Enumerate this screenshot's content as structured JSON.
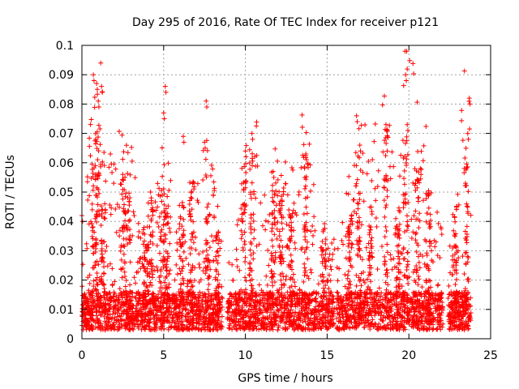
{
  "chart_data": {
    "type": "scatter",
    "title": "Day 295 of 2016, Rate Of TEC Index for receiver p121",
    "xlabel": "GPS time / hours",
    "ylabel": "ROTI / TECUs",
    "xlim": [
      0,
      25
    ],
    "ylim": [
      0,
      0.1
    ],
    "x_ticks": [
      0,
      5,
      10,
      15,
      20,
      25
    ],
    "y_ticks": [
      0,
      0.01,
      0.02,
      0.03,
      0.04,
      0.05,
      0.06,
      0.07,
      0.08,
      0.09,
      0.1
    ],
    "x_tick_labels": [
      "0",
      "5",
      "10",
      "15",
      "20",
      "25"
    ],
    "y_tick_labels": [
      "0",
      "0.01",
      "0.02",
      "0.03",
      "0.04",
      "0.05",
      "0.06",
      "0.07",
      "0.08",
      "0.09",
      "0.1"
    ],
    "grid": true,
    "marker": "+",
    "marker_color": "#ff0000",
    "data_gaps": [
      [
        8.6,
        8.9
      ],
      [
        22.1,
        22.4
      ],
      [
        23.8,
        25
      ]
    ],
    "peaks": [
      {
        "x": 0.0,
        "y": 0.042
      },
      {
        "x": 0.7,
        "y": 0.09
      },
      {
        "x": 0.9,
        "y": 0.087
      },
      {
        "x": 1.2,
        "y": 0.086
      },
      {
        "x": 1.0,
        "y": 0.081
      },
      {
        "x": 1.4,
        "y": 0.046
      },
      {
        "x": 2.5,
        "y": 0.056
      },
      {
        "x": 4.2,
        "y": 0.05
      },
      {
        "x": 5.1,
        "y": 0.086
      },
      {
        "x": 5.0,
        "y": 0.077
      },
      {
        "x": 6.2,
        "y": 0.069
      },
      {
        "x": 7.6,
        "y": 0.081
      },
      {
        "x": 7.5,
        "y": 0.067
      },
      {
        "x": 10.0,
        "y": 0.064
      },
      {
        "x": 10.4,
        "y": 0.07
      },
      {
        "x": 11.7,
        "y": 0.057
      },
      {
        "x": 13.7,
        "y": 0.063
      },
      {
        "x": 16.8,
        "y": 0.076
      },
      {
        "x": 17.0,
        "y": 0.066
      },
      {
        "x": 18.6,
        "y": 0.073
      },
      {
        "x": 19.8,
        "y": 0.09
      },
      {
        "x": 19.9,
        "y": 0.073
      },
      {
        "x": 20.7,
        "y": 0.058
      },
      {
        "x": 23.7,
        "y": 0.082
      },
      {
        "x": 23.6,
        "y": 0.07
      }
    ]
  }
}
